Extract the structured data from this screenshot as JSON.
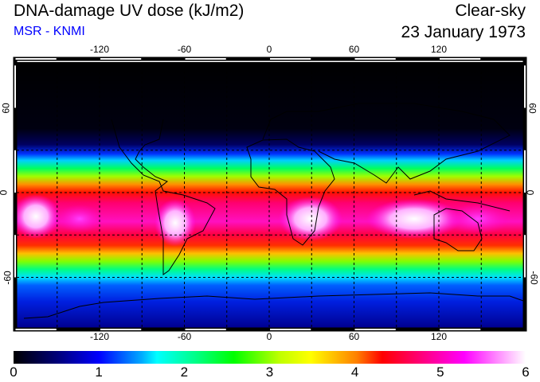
{
  "header": {
    "title": "DNA-damage UV dose (kJ/m2)",
    "subtitle": "MSR - KNMI",
    "condition": "Clear-sky",
    "date": "23 January 1973"
  },
  "map": {
    "lon_ticks": [
      "-120",
      "-60",
      "0",
      "60",
      "120"
    ],
    "lat_ticks": [
      "60",
      "0",
      "-60"
    ],
    "lon_values": [
      -120,
      -60,
      0,
      60,
      120
    ],
    "lat_values": [
      60,
      0,
      -60
    ]
  },
  "colorbar": {
    "labels": [
      "0",
      "1",
      "2",
      "3",
      "4",
      "5",
      "6"
    ],
    "min": 0,
    "max": 6,
    "colors": [
      "#000000",
      "#0000ff",
      "#00ffff",
      "#00ff00",
      "#ffff00",
      "#ff0000",
      "#ff00ff",
      "#ffffff"
    ]
  }
}
